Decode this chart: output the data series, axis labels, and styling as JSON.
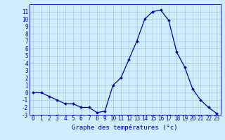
{
  "hours": [
    0,
    1,
    2,
    3,
    4,
    5,
    6,
    7,
    8,
    9,
    10,
    11,
    12,
    13,
    14,
    15,
    16,
    17,
    18,
    19,
    20,
    21,
    22,
    23
  ],
  "temps": [
    0,
    0,
    -0.5,
    -1,
    -1.5,
    -1.5,
    -2,
    -2,
    -2.7,
    -2.5,
    1,
    2,
    4.5,
    7,
    10,
    11,
    11.2,
    9.8,
    5.5,
    3.5,
    0.5,
    -1,
    -2,
    -2.8
  ],
  "line_color": "#0000aa",
  "marker": "D",
  "marker_size": 1.8,
  "bg_color": "#cceeff",
  "grid_color": "#aabbcc",
  "xlabel": "Graphe des températures (°c)",
  "ylim": [
    -3,
    12
  ],
  "yticks": [
    -3,
    -2,
    -1,
    0,
    1,
    2,
    3,
    4,
    5,
    6,
    7,
    8,
    9,
    10,
    11
  ],
  "xticks": [
    0,
    1,
    2,
    3,
    4,
    5,
    6,
    7,
    8,
    9,
    10,
    11,
    12,
    13,
    14,
    15,
    16,
    17,
    18,
    19,
    20,
    21,
    22,
    23
  ],
  "tick_fontsize": 5.5,
  "xlabel_fontsize": 6.5,
  "axis_color": "#0000aa",
  "spine_color": "#0000aa",
  "linewidth": 0.9
}
